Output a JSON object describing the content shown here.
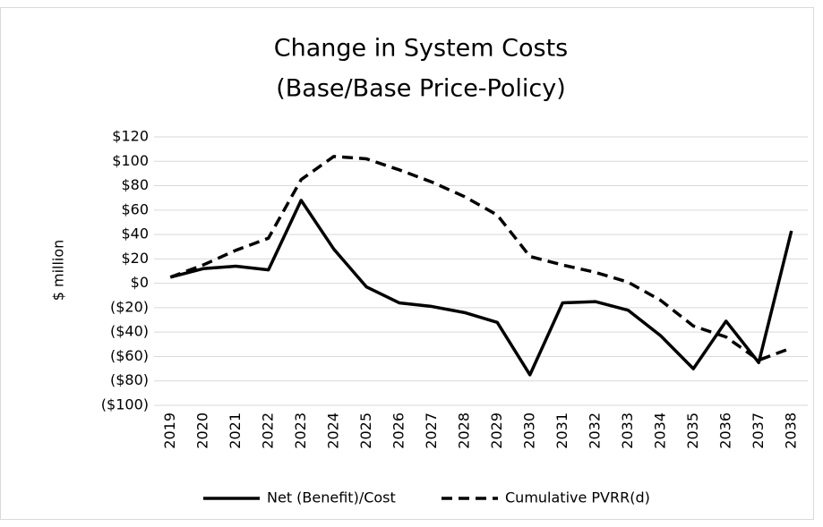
{
  "chart_data": {
    "type": "line",
    "title": [
      "Change in System Costs",
      "(Base/Base Price-Policy)"
    ],
    "y_label": "$ million",
    "categories": [
      "2019",
      "2020",
      "2021",
      "2022",
      "2023",
      "2024",
      "2025",
      "2026",
      "2027",
      "2028",
      "2029",
      "2030",
      "2031",
      "2032",
      "2033",
      "2034",
      "2035",
      "2036",
      "2037",
      "2038"
    ],
    "series": [
      {
        "name": "Net (Benefit)/Cost",
        "color": "#000000",
        "dash": false,
        "values": [
          5,
          12,
          14,
          11,
          68,
          28,
          -3,
          -16,
          -19,
          -24,
          -32,
          -75,
          -16,
          -15,
          -22,
          -43,
          -70,
          -31,
          -65,
          43
        ]
      },
      {
        "name": "Cumulative PVRR(d)",
        "color": "#000000",
        "dash": true,
        "values": [
          5,
          15,
          27,
          37,
          85,
          104,
          102,
          93,
          83,
          71,
          56,
          22,
          15,
          9,
          1,
          -14,
          -35,
          -44,
          -63,
          -53
        ]
      }
    ],
    "ylim": [
      -100,
      120
    ],
    "yticks": [
      {
        "value": 120,
        "label": "$120"
      },
      {
        "value": 100,
        "label": "$100"
      },
      {
        "value": 80,
        "label": "$80"
      },
      {
        "value": 60,
        "label": "$60"
      },
      {
        "value": 40,
        "label": "$40"
      },
      {
        "value": 20,
        "label": "$20"
      },
      {
        "value": 0,
        "label": "$0"
      },
      {
        "value": -20,
        "label": "($20)"
      },
      {
        "value": -40,
        "label": "($40)"
      },
      {
        "value": -60,
        "label": "($60)"
      },
      {
        "value": -80,
        "label": "($80)"
      },
      {
        "value": -100,
        "label": "($100)"
      }
    ],
    "grid": true,
    "legend": "bottom"
  }
}
